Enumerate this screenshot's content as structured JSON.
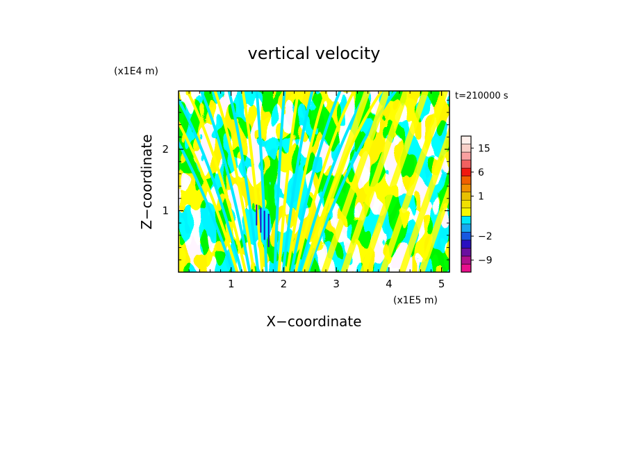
{
  "chart_data": {
    "type": "heatmap",
    "title": "vertical velocity",
    "xlabel": "X−coordinate",
    "ylabel": "Z−coordinate",
    "x_unit": "(x1E5 m)",
    "y_unit": "(x1E4 m)",
    "time_label": "t=210000 s",
    "xlim": [
      0.0,
      5.15
    ],
    "ylim": [
      0.0,
      2.95
    ],
    "x_ticks": [
      1,
      2,
      3,
      4,
      5
    ],
    "y_ticks": [
      1,
      2
    ],
    "colorbar": {
      "levels": [
        -12,
        -9,
        -6,
        -4,
        -2,
        -1,
        -0.5,
        0,
        0.5,
        1,
        2,
        4,
        6,
        9,
        12,
        15,
        18,
        24
      ],
      "colors": [
        "#e8108c",
        "#b0108c",
        "#6a10a0",
        "#2a10c0",
        "#1858e0",
        "#18a8f0",
        "#00e8f8",
        "#f8f800",
        "#f0e000",
        "#e8c000",
        "#f09000",
        "#f06000",
        "#f01810",
        "#f06060",
        "#f8a0a0",
        "#f8d0c8",
        "#fff0ec"
      ],
      "tick_labels": [
        "15",
        "6",
        "1",
        "−2",
        "−9"
      ],
      "tick_values": [
        15,
        6,
        1,
        -2,
        -9
      ]
    },
    "field_description_colors": {
      "positive": "#ffff00",
      "negative": "#00e8ff",
      "strong_negative": "#2010c0"
    }
  }
}
